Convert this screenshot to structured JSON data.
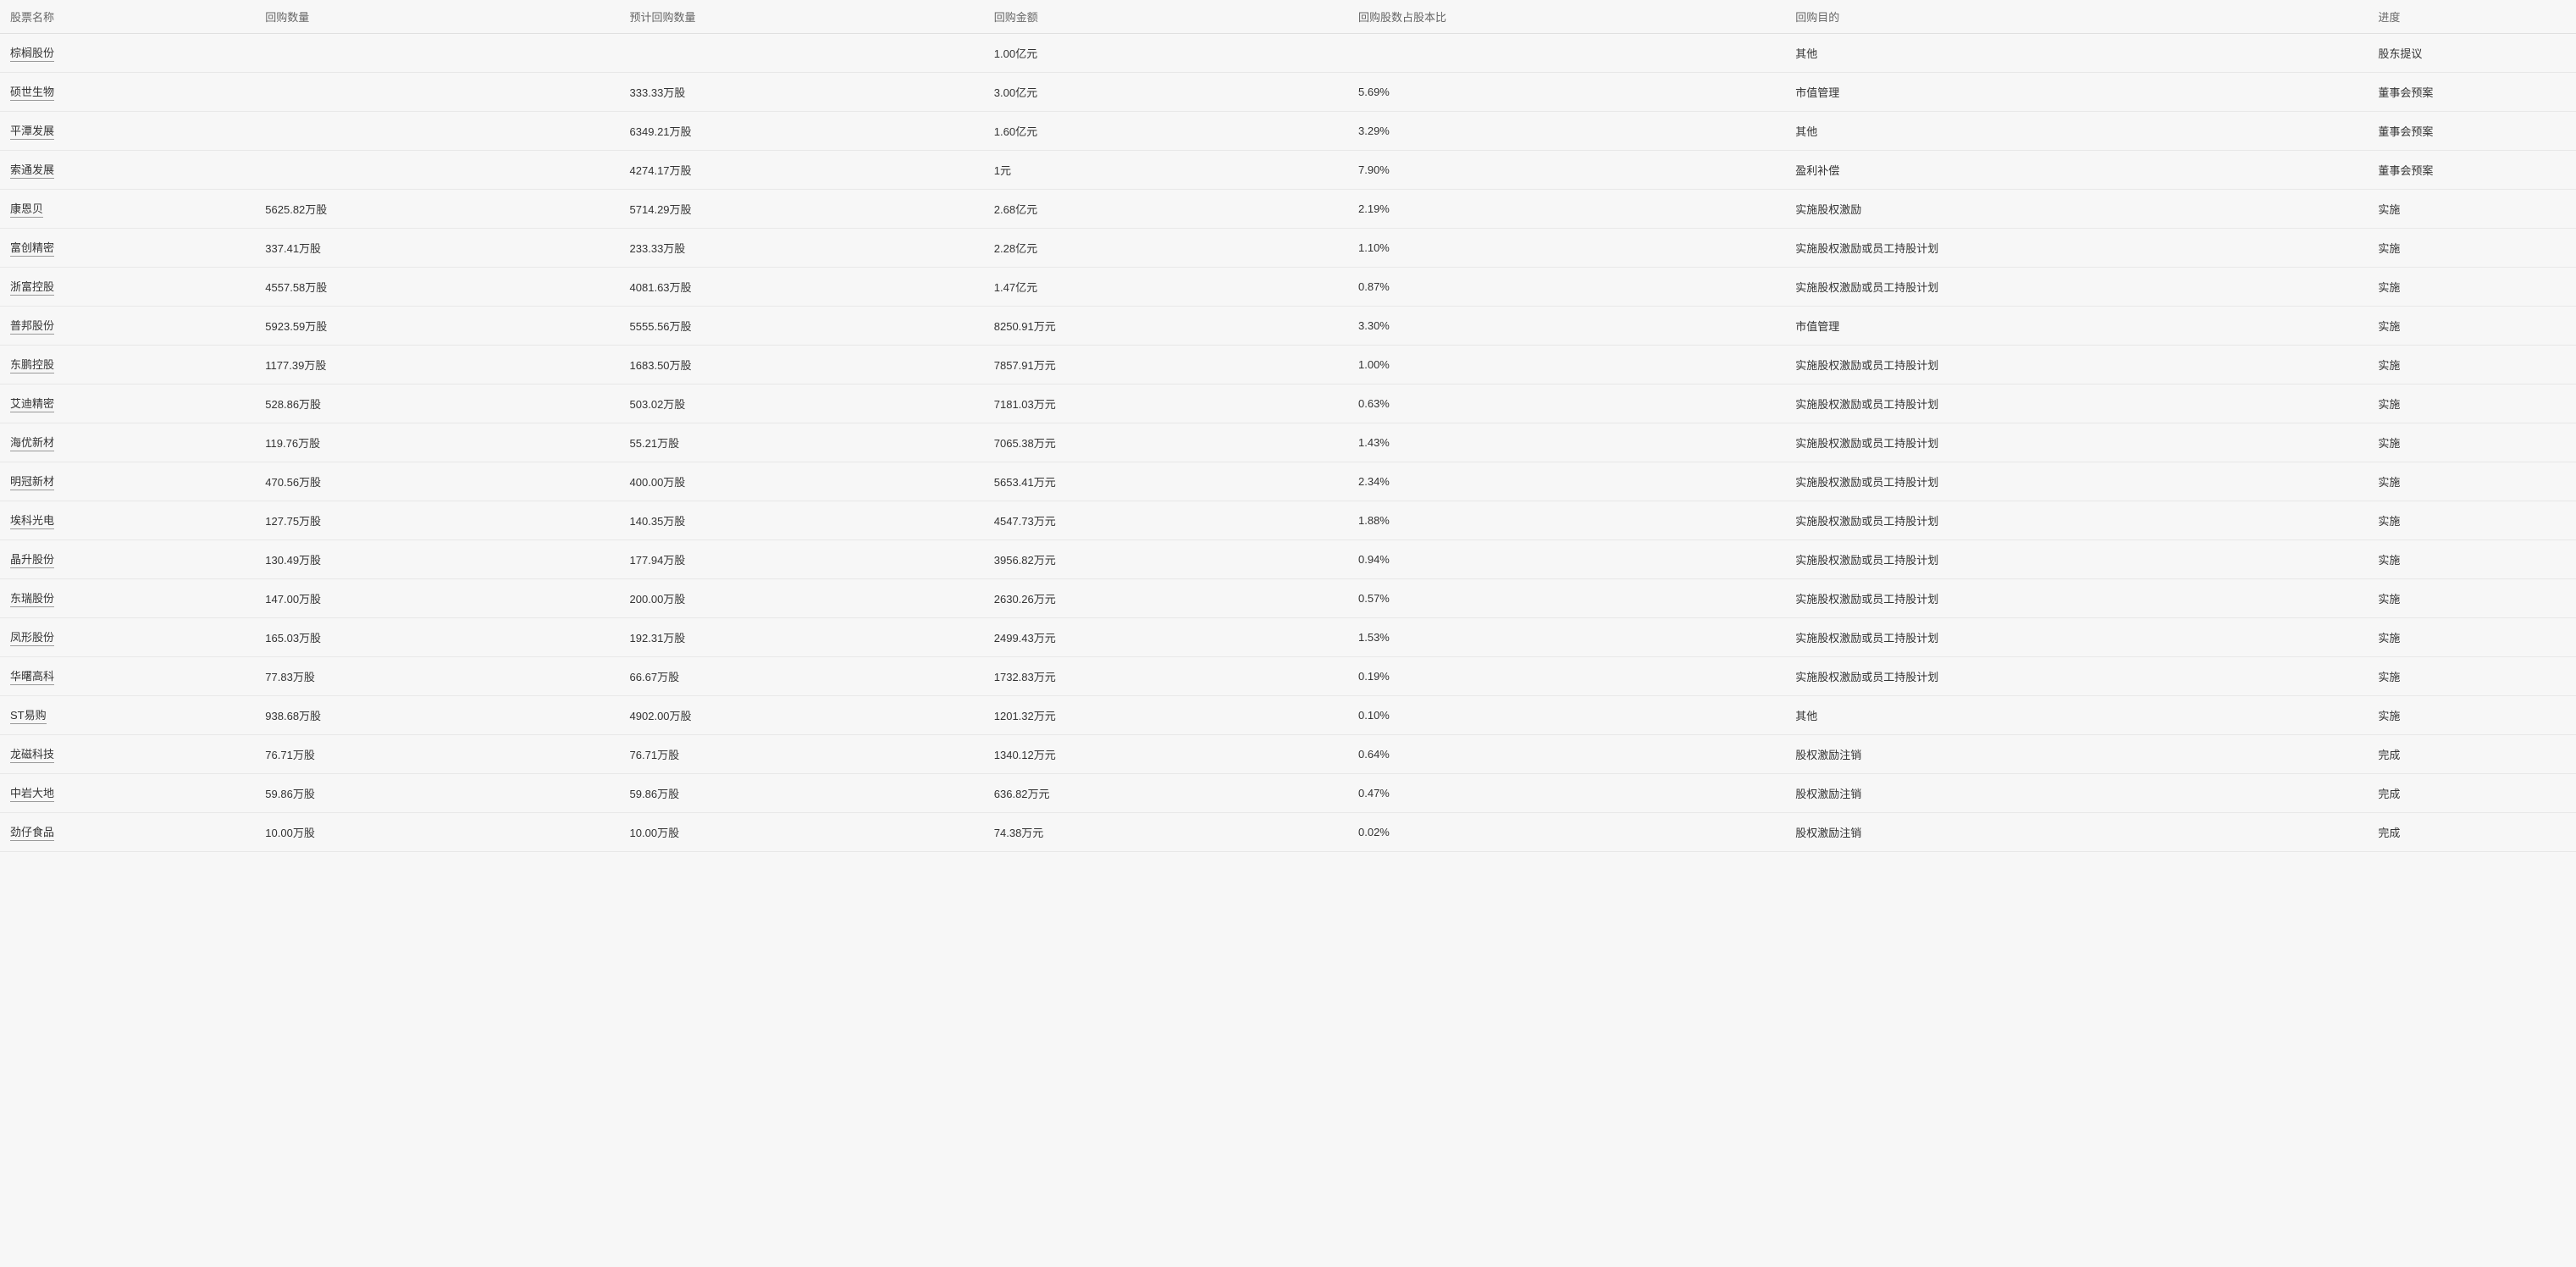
{
  "table": {
    "columns": [
      "股票名称",
      "回购数量",
      "预计回购数量",
      "回购金额",
      "回购股数占股本比",
      "回购目的",
      "进度"
    ],
    "rows": [
      {
        "name": "棕榈股份",
        "qty": "",
        "est_qty": "",
        "amount": "1.00亿元",
        "ratio": "",
        "purpose": "其他",
        "progress": "股东提议"
      },
      {
        "name": "硕世生物",
        "qty": "",
        "est_qty": "333.33万股",
        "amount": "3.00亿元",
        "ratio": "5.69%",
        "purpose": "市值管理",
        "progress": "董事会预案"
      },
      {
        "name": "平潭发展",
        "qty": "",
        "est_qty": "6349.21万股",
        "amount": "1.60亿元",
        "ratio": "3.29%",
        "purpose": "其他",
        "progress": "董事会预案"
      },
      {
        "name": "索通发展",
        "qty": "",
        "est_qty": "4274.17万股",
        "amount": "1元",
        "ratio": "7.90%",
        "purpose": "盈利补偿",
        "progress": "董事会预案"
      },
      {
        "name": "康恩贝",
        "qty": "5625.82万股",
        "est_qty": "5714.29万股",
        "amount": "2.68亿元",
        "ratio": "2.19%",
        "purpose": "实施股权激励",
        "progress": "实施"
      },
      {
        "name": "富创精密",
        "qty": "337.41万股",
        "est_qty": "233.33万股",
        "amount": "2.28亿元",
        "ratio": "1.10%",
        "purpose": "实施股权激励或员工持股计划",
        "progress": "实施"
      },
      {
        "name": "浙富控股",
        "qty": "4557.58万股",
        "est_qty": "4081.63万股",
        "amount": "1.47亿元",
        "ratio": "0.87%",
        "purpose": "实施股权激励或员工持股计划",
        "progress": "实施"
      },
      {
        "name": "普邦股份",
        "qty": "5923.59万股",
        "est_qty": "5555.56万股",
        "amount": "8250.91万元",
        "ratio": "3.30%",
        "purpose": "市值管理",
        "progress": "实施"
      },
      {
        "name": "东鹏控股",
        "qty": "1177.39万股",
        "est_qty": "1683.50万股",
        "amount": "7857.91万元",
        "ratio": "1.00%",
        "purpose": "实施股权激励或员工持股计划",
        "progress": "实施"
      },
      {
        "name": "艾迪精密",
        "qty": "528.86万股",
        "est_qty": "503.02万股",
        "amount": "7181.03万元",
        "ratio": "0.63%",
        "purpose": "实施股权激励或员工持股计划",
        "progress": "实施"
      },
      {
        "name": "海优新材",
        "qty": "119.76万股",
        "est_qty": "55.21万股",
        "amount": "7065.38万元",
        "ratio": "1.43%",
        "purpose": "实施股权激励或员工持股计划",
        "progress": "实施"
      },
      {
        "name": "明冠新材",
        "qty": "470.56万股",
        "est_qty": "400.00万股",
        "amount": "5653.41万元",
        "ratio": "2.34%",
        "purpose": "实施股权激励或员工持股计划",
        "progress": "实施"
      },
      {
        "name": "埃科光电",
        "qty": "127.75万股",
        "est_qty": "140.35万股",
        "amount": "4547.73万元",
        "ratio": "1.88%",
        "purpose": "实施股权激励或员工持股计划",
        "progress": "实施"
      },
      {
        "name": "晶升股份",
        "qty": "130.49万股",
        "est_qty": "177.94万股",
        "amount": "3956.82万元",
        "ratio": "0.94%",
        "purpose": "实施股权激励或员工持股计划",
        "progress": "实施"
      },
      {
        "name": "东瑞股份",
        "qty": "147.00万股",
        "est_qty": "200.00万股",
        "amount": "2630.26万元",
        "ratio": "0.57%",
        "purpose": "实施股权激励或员工持股计划",
        "progress": "实施"
      },
      {
        "name": "凤形股份",
        "qty": "165.03万股",
        "est_qty": "192.31万股",
        "amount": "2499.43万元",
        "ratio": "1.53%",
        "purpose": "实施股权激励或员工持股计划",
        "progress": "实施"
      },
      {
        "name": "华曙高科",
        "qty": "77.83万股",
        "est_qty": "66.67万股",
        "amount": "1732.83万元",
        "ratio": "0.19%",
        "purpose": "实施股权激励或员工持股计划",
        "progress": "实施"
      },
      {
        "name": "ST易购",
        "qty": "938.68万股",
        "est_qty": "4902.00万股",
        "amount": "1201.32万元",
        "ratio": "0.10%",
        "purpose": "其他",
        "progress": "实施"
      },
      {
        "name": "龙磁科技",
        "qty": "76.71万股",
        "est_qty": "76.71万股",
        "amount": "1340.12万元",
        "ratio": "0.64%",
        "purpose": "股权激励注销",
        "progress": "完成"
      },
      {
        "name": "中岩大地",
        "qty": "59.86万股",
        "est_qty": "59.86万股",
        "amount": "636.82万元",
        "ratio": "0.47%",
        "purpose": "股权激励注销",
        "progress": "完成"
      },
      {
        "name": "劲仔食品",
        "qty": "10.00万股",
        "est_qty": "10.00万股",
        "amount": "74.38万元",
        "ratio": "0.02%",
        "purpose": "股权激励注销",
        "progress": "完成"
      }
    ],
    "styling": {
      "background_color": "#f7f7f7",
      "border_color": "#e8e8e8",
      "header_text_color": "#666666",
      "cell_text_color": "#333333",
      "link_underline_color": "#999999",
      "font_size": 13,
      "row_padding_v": 12,
      "row_padding_h": 8
    }
  }
}
